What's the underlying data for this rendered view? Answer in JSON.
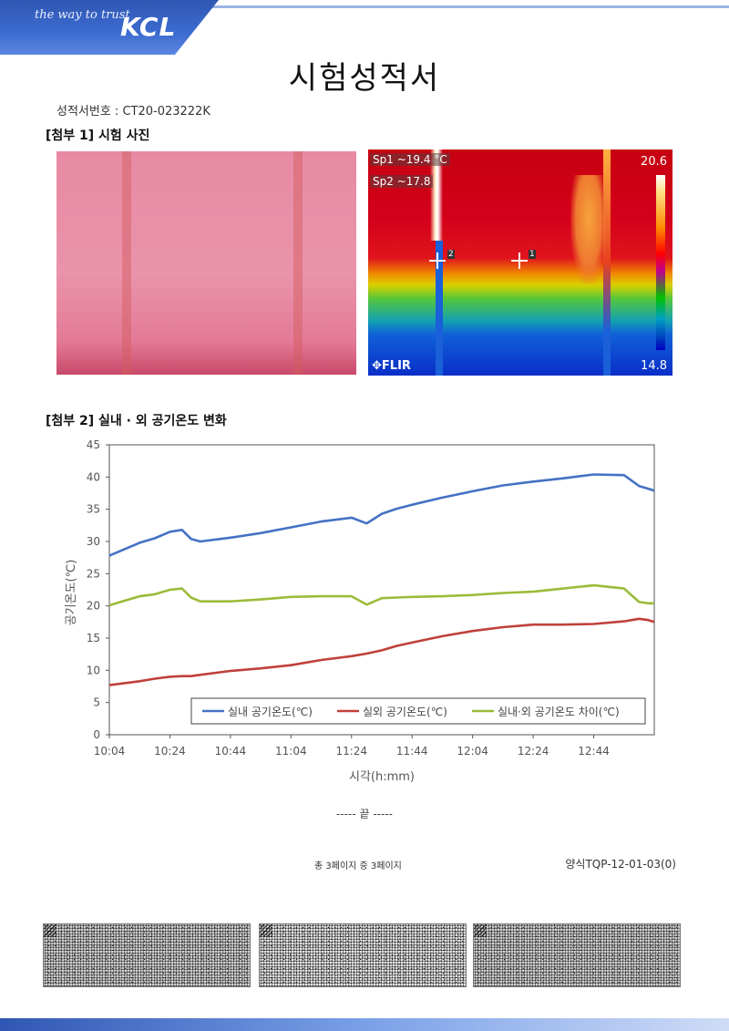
{
  "header": {
    "slogan": "the way to trust",
    "logo": "KCL",
    "brand_color": "#2f57b3"
  },
  "title": "시험성적서",
  "report_number": "성적서번호 : CT20-023222K",
  "attachment1": {
    "heading": "[첨부 1] 시험 사진",
    "thermal": {
      "sp1_label": "Sp1",
      "sp1_value": "~19.4",
      "unit": "°C",
      "sp2_label": "Sp2",
      "sp2_value": "~17.8",
      "scale_max": "20.6",
      "scale_min": "14.8",
      "brand": "FLIR",
      "marker1": "1",
      "marker2": "2"
    }
  },
  "attachment2": {
    "heading": "[첨부 2] 실내 · 외 공기온도 변화"
  },
  "chart_data": {
    "type": "line",
    "xlabel": "시각(h:mm)",
    "ylabel": "공기온도(℃)",
    "x_ticks": [
      "10:04",
      "10:24",
      "10:44",
      "11:04",
      "11:24",
      "11:44",
      "12:04",
      "12:24",
      "12:44"
    ],
    "x_range_minutes": [
      0,
      180
    ],
    "ylim": [
      0,
      45
    ],
    "y_ticks": [
      0,
      5,
      10,
      15,
      20,
      25,
      30,
      35,
      40,
      45
    ],
    "legend_position": "bottom-right",
    "grid": false,
    "x_minutes": [
      0,
      10,
      15,
      20,
      24,
      27,
      30,
      40,
      50,
      60,
      70,
      80,
      85,
      90,
      95,
      100,
      110,
      120,
      130,
      140,
      150,
      160,
      170,
      175,
      178,
      180
    ],
    "series": [
      {
        "name": "실내 공기온도(℃)",
        "color": "#4472c4",
        "values": [
          27.8,
          29.8,
          30.5,
          31.5,
          31.8,
          30.4,
          30.0,
          30.6,
          31.3,
          32.2,
          33.1,
          33.7,
          32.8,
          34.3,
          35.1,
          35.7,
          36.8,
          37.8,
          38.7,
          39.3,
          39.8,
          40.4,
          40.3,
          38.6,
          38.2,
          37.9
        ]
      },
      {
        "name": "실외 공기온도(℃)",
        "color": "#c0403a",
        "values": [
          7.7,
          8.3,
          8.7,
          9.0,
          9.1,
          9.1,
          9.3,
          9.9,
          10.3,
          10.8,
          11.6,
          12.2,
          12.6,
          13.1,
          13.8,
          14.3,
          15.3,
          16.1,
          16.7,
          17.1,
          17.1,
          17.2,
          17.6,
          18.0,
          17.8,
          17.5
        ]
      },
      {
        "name": "실내·외 공기온도 차이(℃)",
        "color": "#9bbb3a",
        "values": [
          20.1,
          21.5,
          21.8,
          22.5,
          22.7,
          21.3,
          20.7,
          20.7,
          21.0,
          21.4,
          21.5,
          21.5,
          20.2,
          21.2,
          21.3,
          21.4,
          21.5,
          21.7,
          22.0,
          22.2,
          22.7,
          23.2,
          22.7,
          20.6,
          20.4,
          20.4
        ]
      }
    ]
  },
  "end_mark": "----- 끝 -----",
  "page_info": "총 3페이지 중 3페이지",
  "form_code": "양식TQP-12-01-03(0)"
}
